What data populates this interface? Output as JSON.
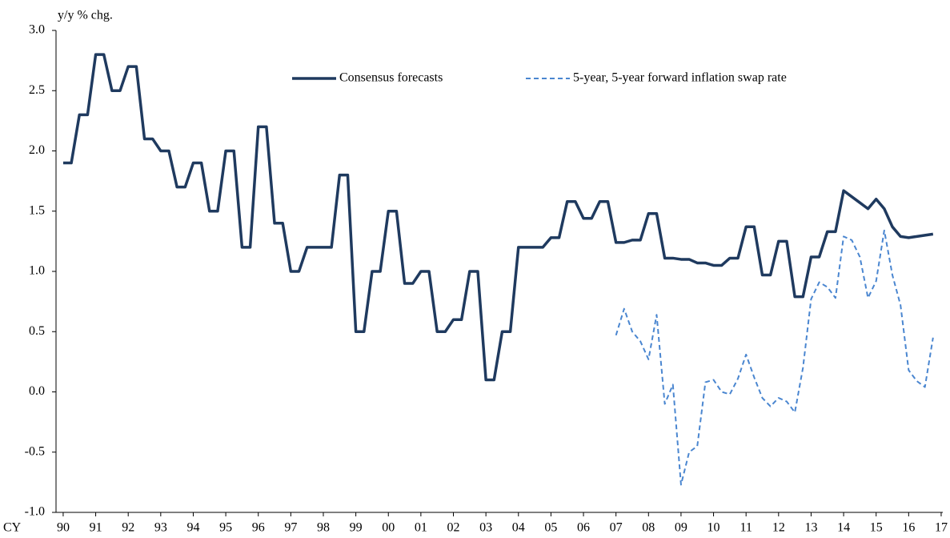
{
  "chart_data": {
    "type": "line",
    "y_label": "y/y % chg.",
    "x_label": "CY",
    "legend": "top",
    "grid": false,
    "x": [
      1990,
      1990.25,
      1990.5,
      1990.75,
      1991,
      1991.25,
      1991.5,
      1991.75,
      1992,
      1992.25,
      1992.5,
      1992.75,
      1993,
      1993.25,
      1993.5,
      1993.75,
      1994,
      1994.25,
      1994.5,
      1994.75,
      1995,
      1995.25,
      1995.5,
      1995.75,
      1996,
      1996.25,
      1996.5,
      1996.75,
      1997,
      1997.25,
      1997.5,
      1997.75,
      1998,
      1998.25,
      1998.5,
      1998.75,
      1999,
      1999.25,
      1999.5,
      1999.75,
      2000,
      2000.25,
      2000.5,
      2000.75,
      2001,
      2001.25,
      2001.5,
      2001.75,
      2002,
      2002.25,
      2002.5,
      2002.75,
      2003,
      2003.25,
      2003.5,
      2003.75,
      2004,
      2004.25,
      2004.5,
      2004.75,
      2005,
      2005.25,
      2005.5,
      2005.75,
      2006,
      2006.25,
      2006.5,
      2006.75,
      2007,
      2007.25,
      2007.5,
      2007.75,
      2008,
      2008.25,
      2008.5,
      2008.75,
      2009,
      2009.25,
      2009.5,
      2009.75,
      2010,
      2010.25,
      2010.5,
      2010.75,
      2011,
      2011.25,
      2011.5,
      2011.75,
      2012,
      2012.25,
      2012.5,
      2012.75,
      2013,
      2013.25,
      2013.5,
      2013.75,
      2014,
      2014.25,
      2014.5,
      2014.75,
      2015,
      2015.25,
      2015.5,
      2015.75,
      2016,
      2016.25,
      2016.5,
      2016.75
    ],
    "series": [
      {
        "name": "Consensus forecasts",
        "color": "#1f3a5f",
        "style": "solid",
        "values": [
          1.9,
          1.9,
          2.3,
          2.3,
          2.8,
          2.8,
          2.5,
          2.5,
          2.7,
          2.7,
          2.1,
          2.1,
          2.0,
          2.0,
          1.7,
          1.7,
          1.9,
          1.9,
          1.5,
          1.5,
          2.0,
          2.0,
          1.2,
          1.2,
          2.2,
          2.2,
          1.4,
          1.4,
          1.0,
          1.0,
          1.2,
          1.2,
          1.2,
          1.2,
          1.8,
          1.8,
          0.5,
          0.5,
          1.0,
          1.0,
          1.5,
          1.5,
          0.9,
          0.9,
          1.0,
          1.0,
          0.5,
          0.5,
          0.6,
          0.6,
          1.0,
          1.0,
          0.1,
          0.1,
          0.5,
          0.5,
          1.2,
          1.2,
          1.2,
          1.2,
          1.28,
          1.28,
          1.58,
          1.58,
          1.44,
          1.44,
          1.58,
          1.58,
          1.24,
          1.24,
          1.26,
          1.26,
          1.48,
          1.48,
          1.11,
          1.11,
          1.1,
          1.1,
          1.07,
          1.07,
          1.05,
          1.05,
          1.11,
          1.11,
          1.37,
          1.37,
          0.97,
          0.97,
          1.25,
          1.25,
          0.79,
          0.79,
          1.12,
          1.12,
          1.33,
          1.33,
          1.67,
          1.62,
          1.57,
          1.52,
          1.6,
          1.52,
          1.37,
          1.29,
          1.28,
          1.29,
          1.3,
          1.31
        ]
      },
      {
        "name": "5-year, 5-year forward inflation swap rate",
        "color": "#4a86d0",
        "style": "dashed",
        "values": [
          null,
          null,
          null,
          null,
          null,
          null,
          null,
          null,
          null,
          null,
          null,
          null,
          null,
          null,
          null,
          null,
          null,
          null,
          null,
          null,
          null,
          null,
          null,
          null,
          null,
          null,
          null,
          null,
          null,
          null,
          null,
          null,
          null,
          null,
          null,
          null,
          null,
          null,
          null,
          null,
          null,
          null,
          null,
          null,
          null,
          null,
          null,
          null,
          null,
          null,
          null,
          null,
          null,
          null,
          null,
          null,
          null,
          null,
          null,
          null,
          null,
          null,
          null,
          null,
          null,
          null,
          null,
          null,
          0.47,
          0.69,
          0.5,
          0.42,
          0.27,
          0.64,
          -0.1,
          0.06,
          -0.77,
          -0.5,
          -0.45,
          0.08,
          0.1,
          0.0,
          -0.02,
          0.11,
          0.31,
          0.12,
          -0.05,
          -0.12,
          -0.05,
          -0.08,
          -0.17,
          0.2,
          0.77,
          0.91,
          0.87,
          0.78,
          1.29,
          1.26,
          1.12,
          0.78,
          0.92,
          1.34,
          0.97,
          0.72,
          0.18,
          0.09,
          0.04,
          0.45
        ]
      }
    ],
    "xlim": [
      1989.78,
      2017.05
    ],
    "xticks": [
      {
        "value": 1990,
        "label": "90"
      },
      {
        "value": 1991,
        "label": "91"
      },
      {
        "value": 1992,
        "label": "92"
      },
      {
        "value": 1993,
        "label": "93"
      },
      {
        "value": 1994,
        "label": "94"
      },
      {
        "value": 1995,
        "label": "95"
      },
      {
        "value": 1996,
        "label": "96"
      },
      {
        "value": 1997,
        "label": "97"
      },
      {
        "value": 1998,
        "label": "98"
      },
      {
        "value": 1999,
        "label": "99"
      },
      {
        "value": 2000,
        "label": "00"
      },
      {
        "value": 2001,
        "label": "01"
      },
      {
        "value": 2002,
        "label": "02"
      },
      {
        "value": 2003,
        "label": "03"
      },
      {
        "value": 2004,
        "label": "04"
      },
      {
        "value": 2005,
        "label": "05"
      },
      {
        "value": 2006,
        "label": "06"
      },
      {
        "value": 2007,
        "label": "07"
      },
      {
        "value": 2008,
        "label": "08"
      },
      {
        "value": 2009,
        "label": "09"
      },
      {
        "value": 2010,
        "label": "10"
      },
      {
        "value": 2011,
        "label": "11"
      },
      {
        "value": 2012,
        "label": "12"
      },
      {
        "value": 2013,
        "label": "13"
      },
      {
        "value": 2014,
        "label": "14"
      },
      {
        "value": 2015,
        "label": "15"
      },
      {
        "value": 2016,
        "label": "16"
      },
      {
        "value": 2017,
        "label": "17"
      }
    ],
    "ylim": [
      -1,
      3
    ],
    "yticks": [
      {
        "value": -1,
        "label": "-1.0"
      },
      -0.5,
      {
        "value": 0,
        "label": "0.0"
      },
      0.5,
      {
        "value": 1,
        "label": "1.0"
      },
      1.5,
      {
        "value": 2,
        "label": "2.0"
      },
      2.5,
      {
        "value": 3,
        "label": "3.0"
      }
    ]
  }
}
